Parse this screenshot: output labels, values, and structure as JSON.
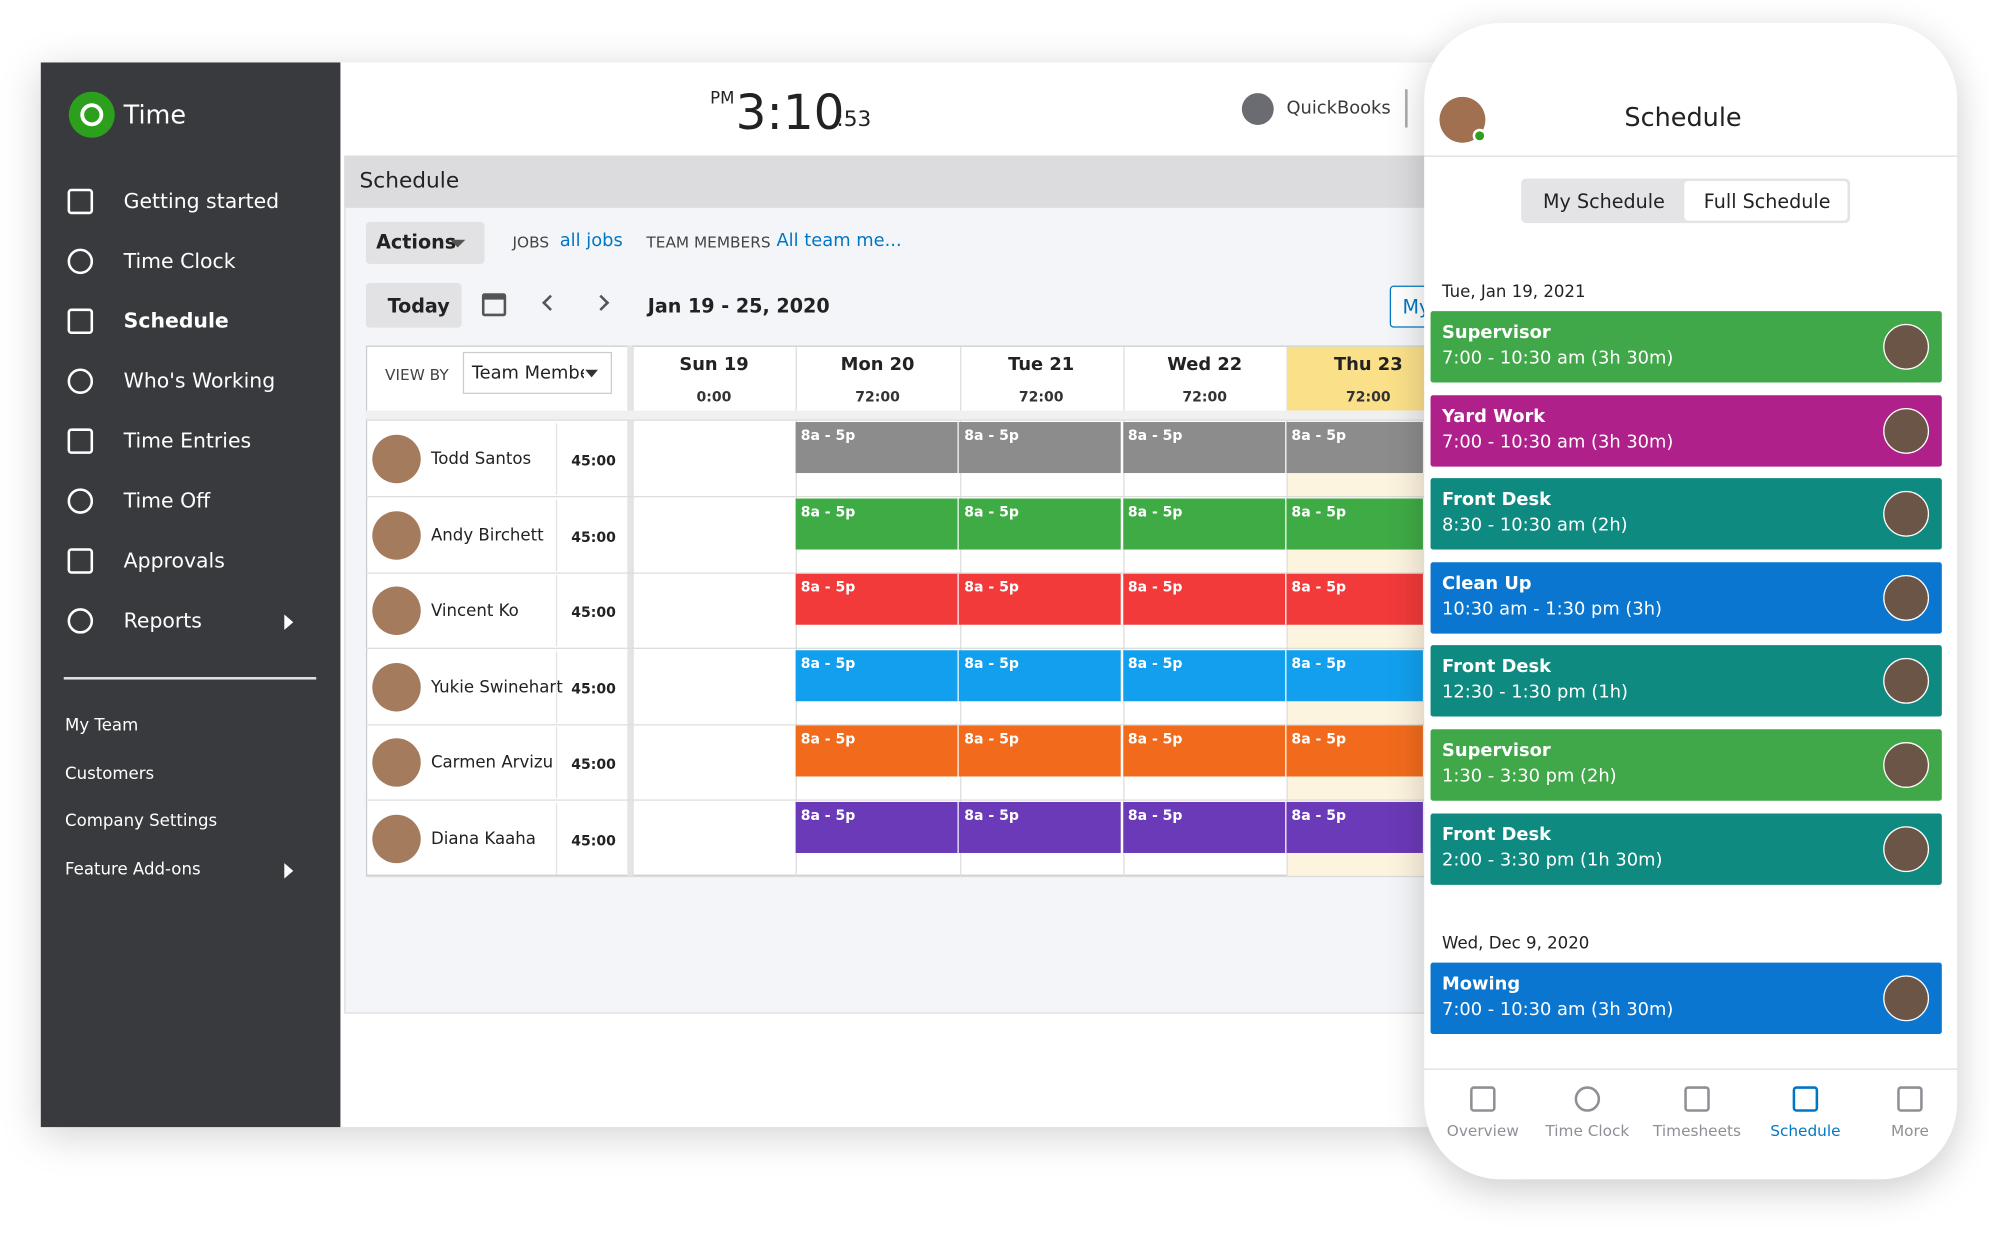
{
  "sidebar": {
    "title": "Time",
    "nav": [
      "Getting started",
      "Time Clock",
      "Schedule",
      "Who's Working",
      "Time Entries",
      "Time Off",
      "Approvals",
      "Reports"
    ],
    "secondary": [
      "My Team",
      "Customers",
      "Company Settings",
      "Feature Add-ons"
    ]
  },
  "header": {
    "ampm": "PM",
    "time": "3:10",
    "seconds": ":53",
    "brand": "QuickBooks"
  },
  "panel": {
    "title": "Schedule",
    "actions": "Actions",
    "jobs_label": "JOBS",
    "jobs_value": "all jobs",
    "team_label": "TEAM MEMBERS",
    "team_value": "All team me...",
    "today": "Today",
    "range": "Jan 19 - 25, 2020",
    "my": "My",
    "view_by": "VIEW BY",
    "view_select": "Team Membe",
    "days": [
      {
        "name": "Sun 19",
        "hours": "0:00"
      },
      {
        "name": "Mon 20",
        "hours": "72:00"
      },
      {
        "name": "Tue 21",
        "hours": "72:00"
      },
      {
        "name": "Wed 22",
        "hours": "72:00"
      },
      {
        "name": "Thu 23",
        "hours": "72:00"
      }
    ],
    "members": [
      {
        "name": "Todd Santos",
        "hours": "45:00",
        "color": "#8c8c8c",
        "shifts": [
          "8a - 5p",
          "8a - 5p",
          "8a - 5p",
          "8a - 5p"
        ]
      },
      {
        "name": "Andy Birchett",
        "hours": "45:00",
        "color": "#3fab45",
        "shifts": [
          "8a - 5p",
          "8a - 5p",
          "8a - 5p",
          "8a - 5p"
        ]
      },
      {
        "name": "Vincent Ko",
        "hours": "45:00",
        "color": "#f23a3a",
        "shifts": [
          "8a - 5p",
          "8a - 5p",
          "8a - 5p",
          "8a - 5p"
        ]
      },
      {
        "name": "Yukie Swinehart",
        "hours": "45:00",
        "color": "#12a0ee",
        "shifts": [
          "8a - 5p",
          "8a - 5p",
          "8a - 5p",
          "8a - 5p"
        ]
      },
      {
        "name": "Carmen Arvizu",
        "hours": "45:00",
        "color": "#f26b1d",
        "shifts": [
          "8a - 5p",
          "8a - 5p",
          "8a - 5p",
          "8a - 5p"
        ]
      },
      {
        "name": "Diana Kaaha",
        "hours": "45:00",
        "color": "#6b3ab8",
        "shifts": [
          "8a - 5p",
          "8a - 5p",
          "8a - 5p",
          "8a - 5p"
        ]
      }
    ]
  },
  "phone": {
    "title": "Schedule",
    "tabs": [
      "My Schedule",
      "Full Schedule"
    ],
    "groups": [
      {
        "date": "Tue, Jan 19, 2021",
        "items": [
          {
            "title": "Supervisor",
            "time": "7:00 - 10:30 am (3h 30m)",
            "color": "#41a84a"
          },
          {
            "title": "Yard Work",
            "time": "7:00 - 10:30 am (3h 30m)",
            "color": "#b0208b"
          },
          {
            "title": "Front Desk",
            "time": "8:30 - 10:30 am (2h)",
            "color": "#0e8a80"
          },
          {
            "title": "Clean Up",
            "time": "10:30 am - 1:30 pm (3h)",
            "color": "#0b76cf"
          },
          {
            "title": "Front Desk",
            "time": "12:30 - 1:30 pm (1h)",
            "color": "#0e8a80"
          },
          {
            "title": "Supervisor",
            "time": "1:30 - 3:30 pm (2h)",
            "color": "#41a84a"
          },
          {
            "title": "Front Desk",
            "time": "2:00 - 3:30 pm (1h 30m)",
            "color": "#0e8a80"
          }
        ]
      },
      {
        "date": "Wed, Dec 9, 2020",
        "items": [
          {
            "title": "Mowing",
            "time": "7:00 - 10:30 am (3h 30m)",
            "color": "#0b76cf"
          }
        ]
      }
    ],
    "nav": [
      "Overview",
      "Time Clock",
      "Timesheets",
      "Schedule",
      "More"
    ]
  }
}
